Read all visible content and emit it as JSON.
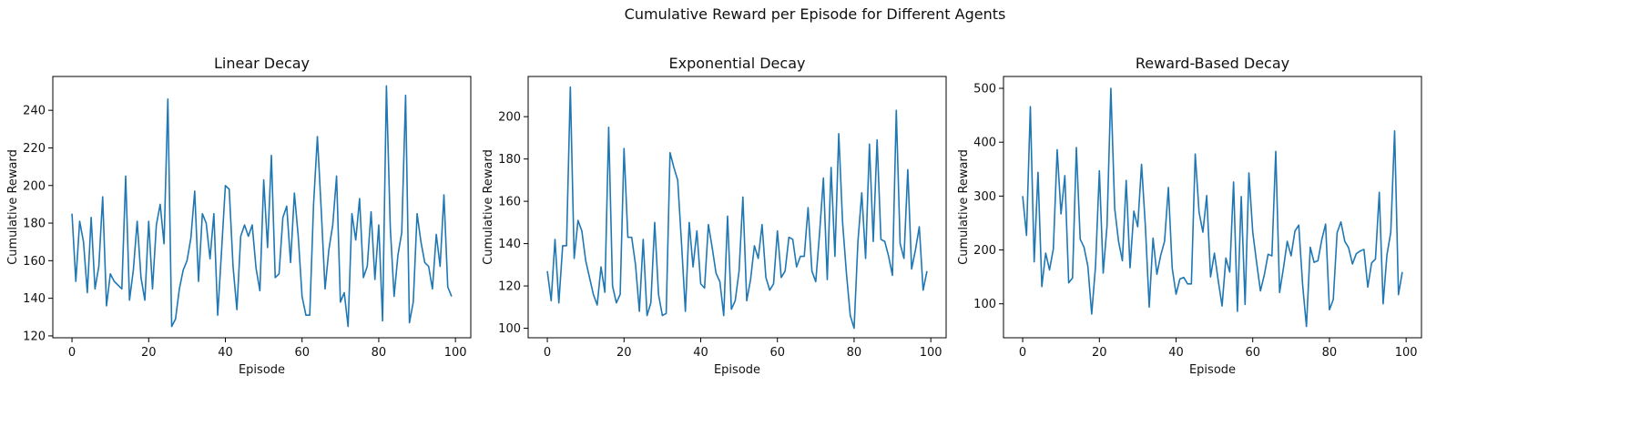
{
  "figure": {
    "suptitle": "Cumulative Reward per Episode for Different Agents"
  },
  "chart_data": [
    {
      "type": "line",
      "title": "Linear Decay",
      "xlabel": "Episode",
      "ylabel": "Cumulative Reward",
      "xlim": [
        -5,
        104
      ],
      "ylim": [
        119,
        258
      ],
      "xticks": [
        0,
        20,
        40,
        60,
        80,
        100
      ],
      "yticks": [
        120,
        140,
        160,
        180,
        200,
        220,
        240
      ],
      "grid": false,
      "series": [
        {
          "color": "#1f77b4",
          "x": [
            0,
            1,
            2,
            3,
            4,
            5,
            6,
            7,
            8,
            9,
            10,
            11,
            12,
            13,
            14,
            15,
            16,
            17,
            18,
            19,
            20,
            21,
            22,
            23,
            24,
            25,
            26,
            27,
            28,
            29,
            30,
            31,
            32,
            33,
            34,
            35,
            36,
            37,
            38,
            39,
            40,
            41,
            42,
            43,
            44,
            45,
            46,
            47,
            48,
            49,
            50,
            51,
            52,
            53,
            54,
            55,
            56,
            57,
            58,
            59,
            60,
            61,
            62,
            63,
            64,
            65,
            66,
            67,
            68,
            69,
            70,
            71,
            72,
            73,
            74,
            75,
            76,
            77,
            78,
            79,
            80,
            81,
            82,
            83,
            84,
            85,
            86,
            87,
            88,
            89,
            90,
            91,
            92,
            93,
            94,
            95,
            96,
            97,
            98,
            99
          ],
          "values": [
            185,
            149,
            181,
            170,
            143,
            183,
            145,
            157,
            194,
            136,
            153,
            149,
            147,
            145,
            205,
            139,
            155,
            181,
            151,
            139,
            181,
            145,
            179,
            190,
            169,
            246,
            125,
            129,
            145,
            155,
            160,
            172,
            197,
            149,
            185,
            180,
            161,
            185,
            131,
            165,
            200,
            198,
            157,
            134,
            173,
            179,
            173,
            179,
            156,
            144,
            203,
            167,
            216,
            151,
            153,
            183,
            189,
            159,
            196,
            173,
            141,
            131,
            131,
            190,
            226,
            187,
            145,
            166,
            179,
            205,
            138,
            143,
            125,
            185,
            171,
            193,
            151,
            157,
            186,
            150,
            179,
            128,
            253,
            178,
            141,
            163,
            175,
            248,
            127,
            138,
            185,
            170,
            159,
            157,
            145,
            174,
            157,
            195,
            146,
            141
          ]
        }
      ]
    },
    {
      "type": "line",
      "title": "Exponential Decay",
      "xlabel": "Episode",
      "ylabel": "Cumulative Reward",
      "xlim": [
        -5,
        104
      ],
      "ylim": [
        95.5,
        219
      ],
      "xticks": [
        0,
        20,
        40,
        60,
        80,
        100
      ],
      "yticks": [
        100,
        120,
        140,
        160,
        180,
        200
      ],
      "grid": false,
      "series": [
        {
          "color": "#1f77b4",
          "x": [
            0,
            1,
            2,
            3,
            4,
            5,
            6,
            7,
            8,
            9,
            10,
            11,
            12,
            13,
            14,
            15,
            16,
            17,
            18,
            19,
            20,
            21,
            22,
            23,
            24,
            25,
            26,
            27,
            28,
            29,
            30,
            31,
            32,
            33,
            34,
            35,
            36,
            37,
            38,
            39,
            40,
            41,
            42,
            43,
            44,
            45,
            46,
            47,
            48,
            49,
            50,
            51,
            52,
            53,
            54,
            55,
            56,
            57,
            58,
            59,
            60,
            61,
            62,
            63,
            64,
            65,
            66,
            67,
            68,
            69,
            70,
            71,
            72,
            73,
            74,
            75,
            76,
            77,
            78,
            79,
            80,
            81,
            82,
            83,
            84,
            85,
            86,
            87,
            88,
            89,
            90,
            91,
            92,
            93,
            94,
            95,
            96,
            97,
            98,
            99
          ],
          "values": [
            127,
            113,
            142,
            112,
            139,
            139,
            214,
            133,
            151,
            146,
            132,
            124,
            116,
            111,
            129,
            117,
            195,
            120,
            112,
            116,
            185,
            143,
            143,
            130,
            108,
            142,
            106,
            112,
            150,
            116,
            106,
            107,
            183,
            176,
            170,
            140,
            108,
            150,
            129,
            146,
            121,
            119,
            149,
            138,
            126,
            122,
            106,
            153,
            109,
            113,
            127,
            162,
            113,
            123,
            139,
            133,
            149,
            124,
            118,
            121,
            146,
            124,
            127,
            143,
            142,
            129,
            134,
            134,
            157,
            127,
            122,
            145,
            171,
            123,
            176,
            134,
            192,
            150,
            126,
            106,
            100,
            141,
            164,
            133,
            187,
            141,
            189,
            142,
            141,
            134,
            125,
            203,
            140,
            133,
            175,
            128,
            137,
            148,
            118,
            127
          ]
        }
      ]
    },
    {
      "type": "line",
      "title": "Reward-Based Decay",
      "xlabel": "Episode",
      "ylabel": "Cumulative Reward",
      "xlim": [
        -5,
        104
      ],
      "ylim": [
        37,
        522
      ],
      "xticks": [
        0,
        20,
        40,
        60,
        80,
        100
      ],
      "yticks": [
        100,
        200,
        300,
        400,
        500
      ],
      "grid": false,
      "series": [
        {
          "color": "#1f77b4",
          "x": [
            0,
            1,
            2,
            3,
            4,
            5,
            6,
            7,
            8,
            9,
            10,
            11,
            12,
            13,
            14,
            15,
            16,
            17,
            18,
            19,
            20,
            21,
            22,
            23,
            24,
            25,
            26,
            27,
            28,
            29,
            30,
            31,
            32,
            33,
            34,
            35,
            36,
            37,
            38,
            39,
            40,
            41,
            42,
            43,
            44,
            45,
            46,
            47,
            48,
            49,
            50,
            51,
            52,
            53,
            54,
            55,
            56,
            57,
            58,
            59,
            60,
            61,
            62,
            63,
            64,
            65,
            66,
            67,
            68,
            69,
            70,
            71,
            72,
            73,
            74,
            75,
            76,
            77,
            78,
            79,
            80,
            81,
            82,
            83,
            84,
            85,
            86,
            87,
            88,
            89,
            90,
            91,
            92,
            93,
            94,
            95,
            96,
            97,
            98,
            99
          ],
          "values": [
            300,
            227,
            466,
            178,
            344,
            132,
            194,
            163,
            202,
            386,
            267,
            338,
            139,
            148,
            390,
            220,
            205,
            170,
            81,
            170,
            347,
            157,
            245,
            500,
            277,
            216,
            180,
            329,
            167,
            272,
            243,
            359,
            244,
            94,
            222,
            155,
            190,
            216,
            316,
            166,
            118,
            146,
            149,
            137,
            137,
            378,
            270,
            233,
            301,
            150,
            194,
            143,
            96,
            185,
            159,
            326,
            86,
            299,
            99,
            343,
            233,
            177,
            124,
            153,
            192,
            189,
            383,
            121,
            166,
            216,
            189,
            235,
            246,
            136,
            58,
            205,
            177,
            180,
            219,
            248,
            89,
            108,
            232,
            252,
            216,
            204,
            174,
            193,
            198,
            201,
            131,
            176,
            183,
            307,
            100,
            191,
            233,
            421,
            117,
            159
          ]
        }
      ]
    }
  ]
}
